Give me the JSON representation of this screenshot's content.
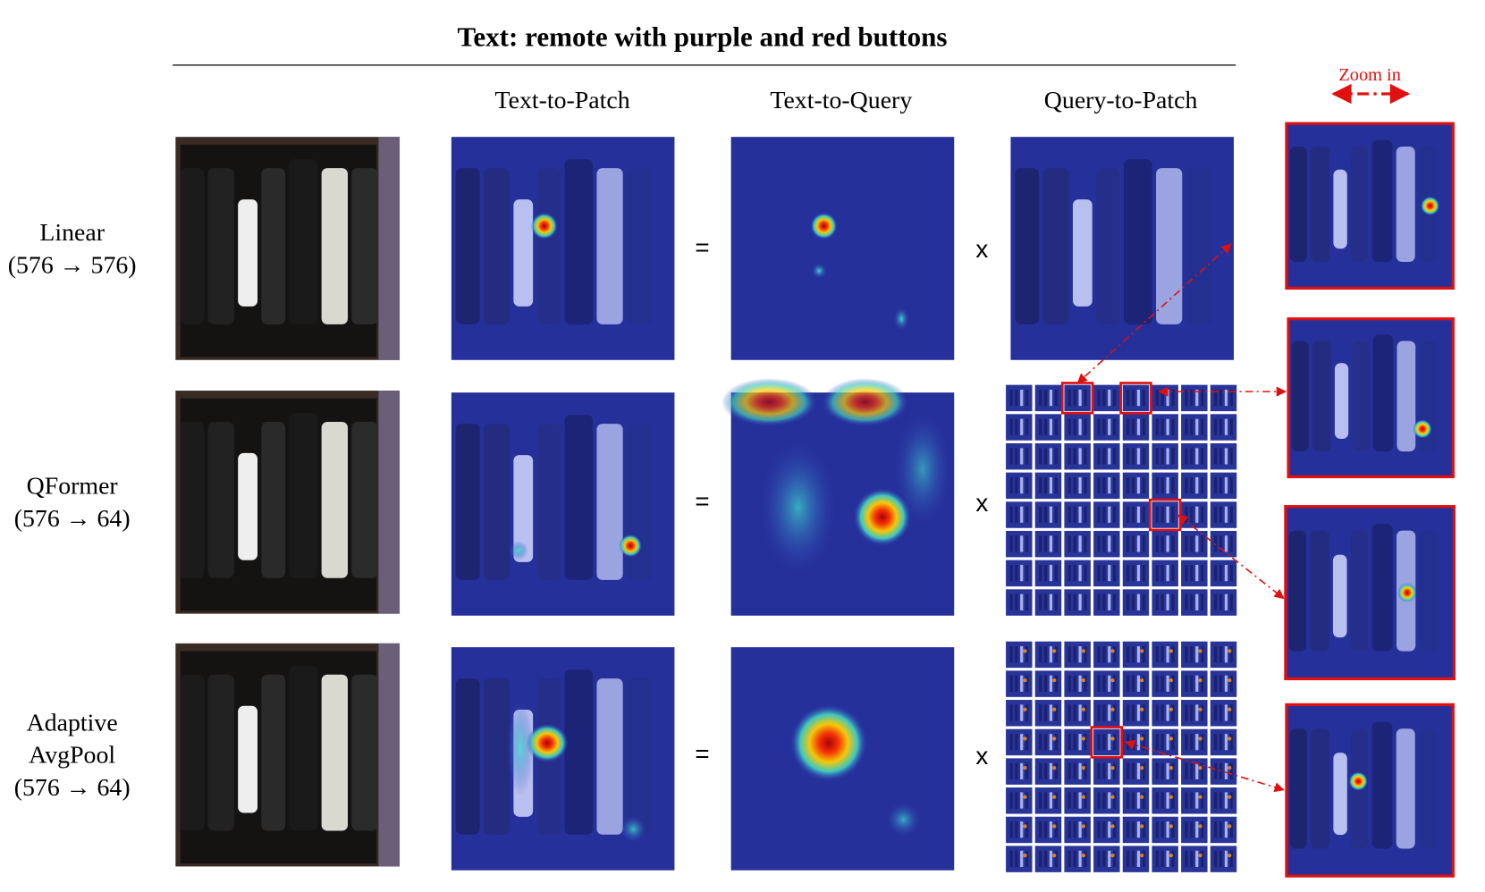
{
  "title": "Text: remote with purple and red buttons",
  "zoom_label": "Zoom in",
  "columns": [
    "Text-to-Patch",
    "Text-to-Query",
    "Query-to-Patch"
  ],
  "rows": [
    {
      "label": [
        "Linear",
        "(576 → 576)"
      ],
      "equals": "=",
      "times": "x"
    },
    {
      "label": [
        "QFormer",
        "(576 → 64)"
      ],
      "equals": "=",
      "times": "x"
    },
    {
      "label": [
        "Adaptive",
        "AvgPool",
        "(576 → 64)"
      ],
      "equals": "=",
      "times": "x"
    }
  ]
}
